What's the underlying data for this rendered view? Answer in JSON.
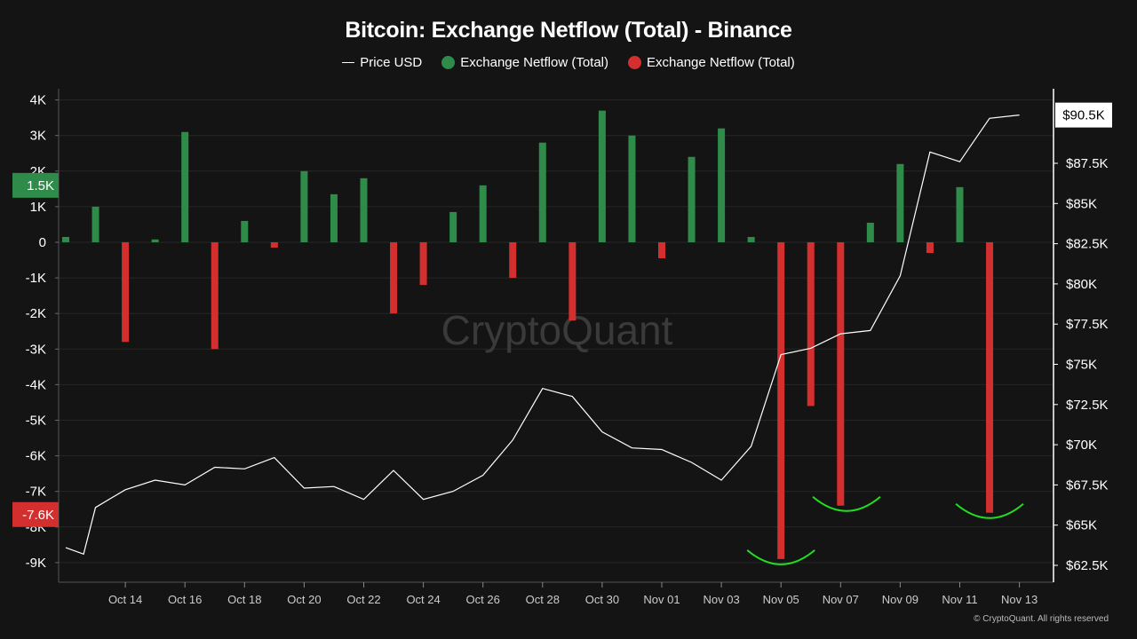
{
  "title": "Bitcoin: Exchange Netflow (Total) - Binance",
  "legend": [
    {
      "label": "Price USD",
      "symbol": "line",
      "color": "#ffffff"
    },
    {
      "label": "Exchange Netflow (Total)",
      "symbol": "dot",
      "color": "#2e8b4a"
    },
    {
      "label": "Exchange Netflow (Total)",
      "symbol": "dot",
      "color": "#d32f2f"
    }
  ],
  "watermark": "CryptoQuant",
  "copyright": "© CryptoQuant. All rights reserved",
  "colors": {
    "background": "#141414",
    "positive": "#2e8b4a",
    "negative": "#d32f2f",
    "price_line": "#ffffff",
    "annotation": "#22dd22",
    "grid": "#262626"
  },
  "chart_data": {
    "type": "bar",
    "title": "Bitcoin: Exchange Netflow (Total) - Binance",
    "x_ticks": [
      "Oct 14",
      "Oct 16",
      "Oct 18",
      "Oct 20",
      "Oct 22",
      "Oct 24",
      "Oct 26",
      "Oct 28",
      "Oct 30",
      "Nov 01",
      "Nov 03",
      "Nov 05",
      "Nov 07",
      "Nov 09",
      "Nov 11",
      "Nov 13"
    ],
    "x_tick_day_index": [
      2,
      4,
      6,
      8,
      10,
      12,
      14,
      16,
      18,
      20,
      22,
      24,
      26,
      28,
      30,
      32
    ],
    "left_axis": {
      "ticks": [
        "4K",
        "3K",
        "2K",
        "1K",
        "0",
        "-1K",
        "-2K",
        "-3K",
        "-4K",
        "-5K",
        "-6K",
        "-7K",
        "-8K",
        "-9K"
      ],
      "tick_values": [
        4000,
        3000,
        2000,
        1000,
        0,
        -1000,
        -2000,
        -3000,
        -4000,
        -5000,
        -6000,
        -7000,
        -8000,
        -9000
      ],
      "ylim": [
        -9500,
        4300
      ]
    },
    "right_axis": {
      "ticks": [
        "$87.5K",
        "$85K",
        "$82.5K",
        "$80K",
        "$77.5K",
        "$75K",
        "$72.5K",
        "$70K",
        "$67.5K",
        "$65K",
        "$62.5K"
      ],
      "tick_values": [
        87500,
        85000,
        82500,
        80000,
        77500,
        75000,
        72500,
        70000,
        67500,
        65000,
        62500
      ],
      "ylim": [
        62000,
        92000
      ]
    },
    "value_labels": [
      {
        "text": "1.5K",
        "axis": "left",
        "value": 1600,
        "color": "#2e8b4a"
      },
      {
        "text": "-7.6K",
        "axis": "left",
        "value": -7650,
        "color": "#d32f2f"
      },
      {
        "text": "$90.5K",
        "axis": "right",
        "value": 90500,
        "color": "#ffffff"
      }
    ],
    "series": [
      {
        "name": "Exchange Netflow (Total)",
        "type": "bar",
        "day_index": [
          0,
          1,
          2,
          3,
          4,
          5,
          6,
          7,
          8,
          9,
          10,
          11,
          12,
          13,
          14,
          15,
          16,
          17,
          18,
          19,
          20,
          21,
          22,
          23,
          24,
          25,
          26,
          27,
          28,
          29,
          30,
          31,
          32
        ],
        "values": [
          150,
          1000,
          -2800,
          80,
          3100,
          -3000,
          600,
          -150,
          2000,
          1350,
          1800,
          -2000,
          -1200,
          850,
          1600,
          -1000,
          2800,
          -2200,
          3700,
          3000,
          -450,
          2400,
          3200,
          150,
          -8900,
          -4600,
          -7400,
          550,
          2200,
          -300,
          1550,
          -7600,
          0
        ]
      },
      {
        "name": "Price USD",
        "type": "line",
        "day_index": [
          0,
          0.6,
          1,
          2,
          3,
          4,
          5,
          6,
          7,
          8,
          9,
          10,
          11,
          12,
          13,
          14,
          15,
          16,
          17,
          18,
          19,
          20,
          21,
          22,
          23,
          24,
          25,
          26,
          27,
          28,
          29,
          30,
          31,
          32
        ],
        "values": [
          63600,
          63200,
          66100,
          67200,
          67800,
          67500,
          68600,
          68500,
          69200,
          67300,
          67400,
          66600,
          68400,
          66600,
          67100,
          68100,
          70300,
          73500,
          73000,
          70800,
          69800,
          69700,
          68900,
          67800,
          69900,
          75600,
          76000,
          76900,
          77100,
          80500,
          88200,
          87600,
          90300,
          90500
        ]
      }
    ],
    "annotations": [
      {
        "type": "smile-arc",
        "day_index": 24
      },
      {
        "type": "smile-arc",
        "day_index": 26.2
      },
      {
        "type": "smile-arc",
        "day_index": 31
      }
    ],
    "grid": true
  }
}
